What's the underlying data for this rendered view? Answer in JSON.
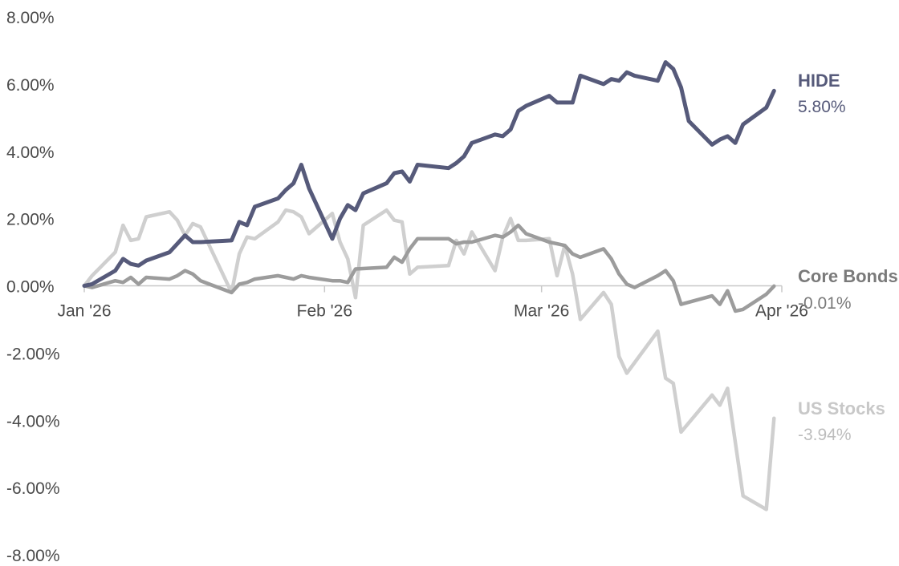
{
  "chart_data": {
    "type": "line",
    "title": "",
    "xlabel": "",
    "ylabel": "",
    "ylim": [
      -8,
      8
    ],
    "yticks": [
      8,
      6,
      4,
      2,
      0,
      -2,
      -4,
      -6,
      -8
    ],
    "ytick_labels": [
      "8.00%",
      "6.00%",
      "4.00%",
      "2.00%",
      "0.00%",
      "-2.00%",
      "-4.00%",
      "-6.00%",
      "-8.00%"
    ],
    "xlim": [
      "2026-01-01",
      "2026-04-01"
    ],
    "xticks": [
      {
        "date": "2026-01-01",
        "label": "Jan '26"
      },
      {
        "date": "2026-02-01",
        "label": "Feb '26"
      },
      {
        "date": "2026-03-01",
        "label": "Mar '26"
      },
      {
        "date": "2026-04-01",
        "label": "Apr '26"
      }
    ],
    "grid": false,
    "legend": "end-labels-right",
    "series": [
      {
        "name": "US Stocks",
        "end_label": "-3.94%",
        "color": "#cfcfcf",
        "points": [
          [
            "2026-01-01",
            0.0
          ],
          [
            "2026-01-02",
            0.3
          ],
          [
            "2026-01-05",
            1.0
          ],
          [
            "2026-01-06",
            1.8
          ],
          [
            "2026-01-07",
            1.35
          ],
          [
            "2026-01-08",
            1.4
          ],
          [
            "2026-01-09",
            2.05
          ],
          [
            "2026-01-12",
            2.2
          ],
          [
            "2026-01-13",
            1.95
          ],
          [
            "2026-01-14",
            1.5
          ],
          [
            "2026-01-15",
            1.85
          ],
          [
            "2026-01-16",
            1.75
          ],
          [
            "2026-01-20",
            -0.2
          ],
          [
            "2026-01-21",
            0.95
          ],
          [
            "2026-01-22",
            1.45
          ],
          [
            "2026-01-23",
            1.4
          ],
          [
            "2026-01-26",
            1.9
          ],
          [
            "2026-01-27",
            2.25
          ],
          [
            "2026-01-28",
            2.2
          ],
          [
            "2026-01-29",
            2.05
          ],
          [
            "2026-01-30",
            1.55
          ],
          [
            "2026-02-02",
            2.15
          ],
          [
            "2026-02-03",
            1.3
          ],
          [
            "2026-02-04",
            0.8
          ],
          [
            "2026-02-05",
            -0.35
          ],
          [
            "2026-02-06",
            1.8
          ],
          [
            "2026-02-09",
            2.25
          ],
          [
            "2026-02-10",
            1.95
          ],
          [
            "2026-02-11",
            1.9
          ],
          [
            "2026-02-12",
            0.35
          ],
          [
            "2026-02-13",
            0.55
          ],
          [
            "2026-02-17",
            0.6
          ],
          [
            "2026-02-18",
            1.35
          ],
          [
            "2026-02-19",
            0.95
          ],
          [
            "2026-02-20",
            1.6
          ],
          [
            "2026-02-23",
            0.45
          ],
          [
            "2026-02-24",
            1.45
          ],
          [
            "2026-02-25",
            2.0
          ],
          [
            "2026-02-26",
            1.35
          ],
          [
            "2026-02-27",
            1.35
          ],
          [
            "2026-03-02",
            1.4
          ],
          [
            "2026-03-03",
            0.3
          ],
          [
            "2026-03-04",
            1.2
          ],
          [
            "2026-03-05",
            0.35
          ],
          [
            "2026-03-06",
            -1.0
          ],
          [
            "2026-03-09",
            -0.2
          ],
          [
            "2026-03-10",
            -0.55
          ],
          [
            "2026-03-11",
            -2.1
          ],
          [
            "2026-03-12",
            -2.6
          ],
          [
            "2026-03-16",
            -1.35
          ],
          [
            "2026-03-17",
            -2.75
          ],
          [
            "2026-03-18",
            -2.9
          ],
          [
            "2026-03-19",
            -4.35
          ],
          [
            "2026-03-23",
            -3.25
          ],
          [
            "2026-03-24",
            -3.55
          ],
          [
            "2026-03-25",
            -3.05
          ],
          [
            "2026-03-27",
            -6.25
          ],
          [
            "2026-03-30",
            -6.65
          ],
          [
            "2026-03-31",
            -3.94
          ]
        ]
      },
      {
        "name": "Core Bonds",
        "end_label": "-0.01%",
        "color": "#9c9c9c",
        "points": [
          [
            "2026-01-01",
            0.0
          ],
          [
            "2026-01-02",
            -0.05
          ],
          [
            "2026-01-05",
            0.15
          ],
          [
            "2026-01-06",
            0.1
          ],
          [
            "2026-01-07",
            0.25
          ],
          [
            "2026-01-08",
            0.05
          ],
          [
            "2026-01-09",
            0.25
          ],
          [
            "2026-01-12",
            0.2
          ],
          [
            "2026-01-13",
            0.3
          ],
          [
            "2026-01-14",
            0.45
          ],
          [
            "2026-01-15",
            0.35
          ],
          [
            "2026-01-16",
            0.15
          ],
          [
            "2026-01-20",
            -0.2
          ],
          [
            "2026-01-21",
            0.05
          ],
          [
            "2026-01-22",
            0.1
          ],
          [
            "2026-01-23",
            0.2
          ],
          [
            "2026-01-26",
            0.3
          ],
          [
            "2026-01-27",
            0.25
          ],
          [
            "2026-01-28",
            0.2
          ],
          [
            "2026-01-29",
            0.3
          ],
          [
            "2026-01-30",
            0.25
          ],
          [
            "2026-02-02",
            0.15
          ],
          [
            "2026-02-03",
            0.15
          ],
          [
            "2026-02-04",
            0.1
          ],
          [
            "2026-02-05",
            0.5
          ],
          [
            "2026-02-09",
            0.55
          ],
          [
            "2026-02-10",
            0.85
          ],
          [
            "2026-02-11",
            0.7
          ],
          [
            "2026-02-12",
            1.1
          ],
          [
            "2026-02-13",
            1.4
          ],
          [
            "2026-02-17",
            1.4
          ],
          [
            "2026-02-18",
            1.25
          ],
          [
            "2026-02-19",
            1.3
          ],
          [
            "2026-02-20",
            1.3
          ],
          [
            "2026-02-23",
            1.5
          ],
          [
            "2026-02-24",
            1.45
          ],
          [
            "2026-02-25",
            1.6
          ],
          [
            "2026-02-26",
            1.8
          ],
          [
            "2026-02-27",
            1.55
          ],
          [
            "2026-03-02",
            1.3
          ],
          [
            "2026-03-03",
            1.25
          ],
          [
            "2026-03-04",
            1.2
          ],
          [
            "2026-03-05",
            0.95
          ],
          [
            "2026-03-06",
            0.85
          ],
          [
            "2026-03-09",
            1.1
          ],
          [
            "2026-03-10",
            0.8
          ],
          [
            "2026-03-11",
            0.35
          ],
          [
            "2026-03-12",
            0.05
          ],
          [
            "2026-03-13",
            -0.05
          ],
          [
            "2026-03-16",
            0.3
          ],
          [
            "2026-03-17",
            0.45
          ],
          [
            "2026-03-18",
            0.15
          ],
          [
            "2026-03-19",
            -0.55
          ],
          [
            "2026-03-23",
            -0.3
          ],
          [
            "2026-03-24",
            -0.55
          ],
          [
            "2026-03-25",
            -0.15
          ],
          [
            "2026-03-26",
            -0.75
          ],
          [
            "2026-03-27",
            -0.7
          ],
          [
            "2026-03-30",
            -0.25
          ],
          [
            "2026-03-31",
            -0.01
          ]
        ]
      },
      {
        "name": "HIDE",
        "end_label": "5.80%",
        "color": "#565a7a",
        "points": [
          [
            "2026-01-01",
            0.0
          ],
          [
            "2026-01-02",
            0.05
          ],
          [
            "2026-01-05",
            0.45
          ],
          [
            "2026-01-06",
            0.8
          ],
          [
            "2026-01-07",
            0.65
          ],
          [
            "2026-01-08",
            0.6
          ],
          [
            "2026-01-09",
            0.75
          ],
          [
            "2026-01-12",
            1.0
          ],
          [
            "2026-01-13",
            1.25
          ],
          [
            "2026-01-14",
            1.5
          ],
          [
            "2026-01-15",
            1.3
          ],
          [
            "2026-01-16",
            1.3
          ],
          [
            "2026-01-20",
            1.35
          ],
          [
            "2026-01-21",
            1.9
          ],
          [
            "2026-01-22",
            1.8
          ],
          [
            "2026-01-23",
            2.35
          ],
          [
            "2026-01-26",
            2.6
          ],
          [
            "2026-01-27",
            2.85
          ],
          [
            "2026-01-28",
            3.05
          ],
          [
            "2026-01-29",
            3.6
          ],
          [
            "2026-01-30",
            2.9
          ],
          [
            "2026-02-02",
            1.4
          ],
          [
            "2026-02-03",
            2.0
          ],
          [
            "2026-02-04",
            2.4
          ],
          [
            "2026-02-05",
            2.25
          ],
          [
            "2026-02-06",
            2.75
          ],
          [
            "2026-02-09",
            3.05
          ],
          [
            "2026-02-10",
            3.35
          ],
          [
            "2026-02-11",
            3.4
          ],
          [
            "2026-02-12",
            3.1
          ],
          [
            "2026-02-13",
            3.6
          ],
          [
            "2026-02-17",
            3.5
          ],
          [
            "2026-02-18",
            3.65
          ],
          [
            "2026-02-19",
            3.85
          ],
          [
            "2026-02-20",
            4.25
          ],
          [
            "2026-02-23",
            4.5
          ],
          [
            "2026-02-24",
            4.45
          ],
          [
            "2026-02-25",
            4.65
          ],
          [
            "2026-02-26",
            5.2
          ],
          [
            "2026-02-27",
            5.35
          ],
          [
            "2026-03-02",
            5.65
          ],
          [
            "2026-03-03",
            5.45
          ],
          [
            "2026-03-04",
            5.45
          ],
          [
            "2026-03-05",
            5.45
          ],
          [
            "2026-03-06",
            6.25
          ],
          [
            "2026-03-09",
            6.0
          ],
          [
            "2026-03-10",
            6.15
          ],
          [
            "2026-03-11",
            6.1
          ],
          [
            "2026-03-12",
            6.35
          ],
          [
            "2026-03-13",
            6.25
          ],
          [
            "2026-03-16",
            6.1
          ],
          [
            "2026-03-17",
            6.65
          ],
          [
            "2026-03-18",
            6.45
          ],
          [
            "2026-03-19",
            5.9
          ],
          [
            "2026-03-20",
            4.9
          ],
          [
            "2026-03-23",
            4.2
          ],
          [
            "2026-03-24",
            4.35
          ],
          [
            "2026-03-25",
            4.45
          ],
          [
            "2026-03-26",
            4.25
          ],
          [
            "2026-03-27",
            4.8
          ],
          [
            "2026-03-30",
            5.3
          ],
          [
            "2026-03-31",
            5.8
          ]
        ]
      }
    ]
  }
}
